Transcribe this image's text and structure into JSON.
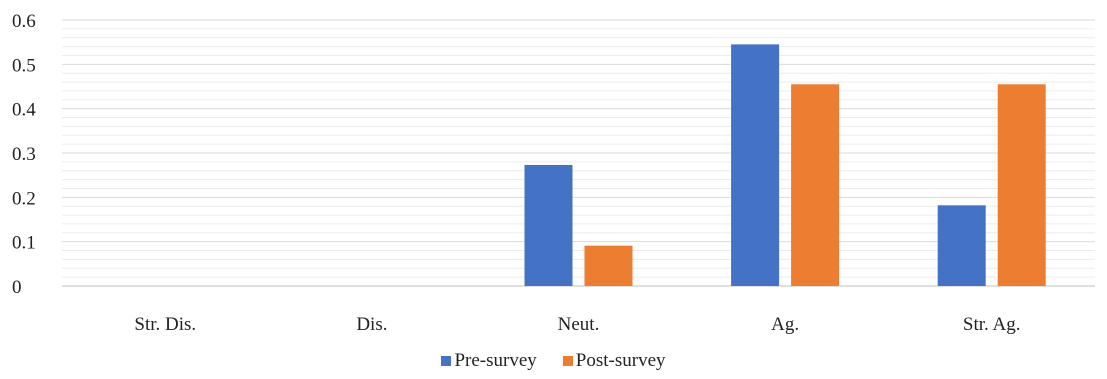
{
  "chart_data": {
    "type": "bar",
    "title": "",
    "xlabel": "",
    "ylabel": "",
    "categories": [
      "Str. Dis.",
      "Dis.",
      "Neut.",
      "Ag.",
      "Str. Ag."
    ],
    "series": [
      {
        "name": "Pre-survey",
        "color": "#4472C4",
        "values": [
          0,
          0,
          0.273,
          0.545,
          0.182
        ]
      },
      {
        "name": "Post-survey",
        "color": "#ED7D31",
        "values": [
          0,
          0,
          0.091,
          0.455,
          0.455
        ]
      }
    ],
    "ylim": [
      0,
      0.6
    ],
    "yticks": [
      "0",
      "0.1",
      "0.2",
      "0.3",
      "0.4",
      "0.5",
      "0.6"
    ],
    "grid": true,
    "legend_position": "bottom"
  }
}
